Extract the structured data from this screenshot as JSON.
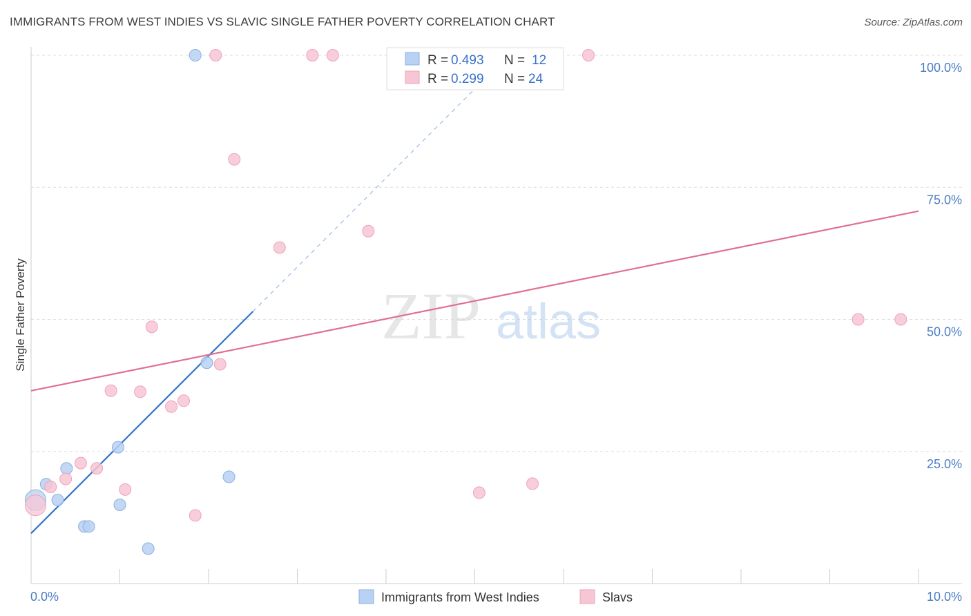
{
  "header": {
    "title": "IMMIGRANTS FROM WEST INDIES VS SLAVIC SINGLE FATHER POVERTY CORRELATION CHART",
    "source": "Source: ZipAtlas.com"
  },
  "watermark": {
    "zip": "ZIP",
    "atlas": "atlas"
  },
  "legend": {
    "rows": [
      {
        "r_label": "R =",
        "r_value": "0.493",
        "n_label": "N =",
        "n_value": "12"
      },
      {
        "r_label": "R =",
        "r_value": "0.299",
        "n_label": "N =",
        "n_value": "24"
      }
    ]
  },
  "colors": {
    "blue_fill": "#b9d1f2",
    "blue_stroke": "#8ab0e0",
    "blue_line": "#2f74c6",
    "pink_fill": "#f7c6d5",
    "pink_stroke": "#eea3bb",
    "pink_line": "#e0708f",
    "grid": "#dddddd",
    "tick_text": "#4a7cc4"
  },
  "chart_data": {
    "type": "scatter",
    "title": "IMMIGRANTS FROM WEST INDIES VS SLAVIC SINGLE FATHER POVERTY CORRELATION CHART",
    "xlabel": "",
    "ylabel": "Single Father Poverty",
    "xlim": [
      0,
      10
    ],
    "ylim": [
      0,
      100
    ],
    "x_tick_labels": [
      "0.0%",
      "10.0%"
    ],
    "y_ticks": [
      25,
      50,
      75,
      100
    ],
    "y_tick_labels": [
      "25.0%",
      "50.0%",
      "75.0%",
      "100.0%"
    ],
    "grid": true,
    "legend_position": "top-center",
    "series": [
      {
        "name": "Immigrants from West Indies",
        "color": "#b9d1f2",
        "points": [
          {
            "x": 0.05,
            "y": 15.8,
            "big": true
          },
          {
            "x": 0.17,
            "y": 18.8
          },
          {
            "x": 0.3,
            "y": 15.8
          },
          {
            "x": 0.4,
            "y": 21.8
          },
          {
            "x": 0.6,
            "y": 10.8
          },
          {
            "x": 0.65,
            "y": 10.8
          },
          {
            "x": 0.98,
            "y": 25.8
          },
          {
            "x": 1.0,
            "y": 14.9
          },
          {
            "x": 1.32,
            "y": 6.6
          },
          {
            "x": 1.85,
            "y": 100
          },
          {
            "x": 1.98,
            "y": 41.8
          },
          {
            "x": 2.23,
            "y": 20.2
          }
        ],
        "trend": {
          "x1": 0.0,
          "y1": 9.5,
          "x2": 2.5,
          "y2": 51.5,
          "dash_x2": 5.2,
          "dash_y2": 97
        }
      },
      {
        "name": "Slavs",
        "color": "#f7c6d5",
        "points": [
          {
            "x": 0.05,
            "y": 14.8,
            "big": true
          },
          {
            "x": 0.22,
            "y": 18.3
          },
          {
            "x": 0.39,
            "y": 19.8
          },
          {
            "x": 0.56,
            "y": 22.8
          },
          {
            "x": 0.74,
            "y": 21.8
          },
          {
            "x": 0.9,
            "y": 36.5
          },
          {
            "x": 1.06,
            "y": 17.8
          },
          {
            "x": 1.23,
            "y": 36.3
          },
          {
            "x": 1.36,
            "y": 48.6
          },
          {
            "x": 1.58,
            "y": 33.5
          },
          {
            "x": 1.72,
            "y": 34.6
          },
          {
            "x": 1.85,
            "y": 12.9
          },
          {
            "x": 2.08,
            "y": 100
          },
          {
            "x": 2.13,
            "y": 41.5
          },
          {
            "x": 2.29,
            "y": 80.3
          },
          {
            "x": 2.8,
            "y": 63.6
          },
          {
            "x": 3.17,
            "y": 100
          },
          {
            "x": 3.4,
            "y": 100
          },
          {
            "x": 3.8,
            "y": 66.7
          },
          {
            "x": 5.05,
            "y": 17.2
          },
          {
            "x": 5.65,
            "y": 18.9
          },
          {
            "x": 6.28,
            "y": 100
          },
          {
            "x": 9.32,
            "y": 50
          },
          {
            "x": 9.8,
            "y": 50
          }
        ],
        "trend": {
          "x1": 0.0,
          "y1": 36.5,
          "x2": 10.0,
          "y2": 70.5
        }
      }
    ]
  }
}
